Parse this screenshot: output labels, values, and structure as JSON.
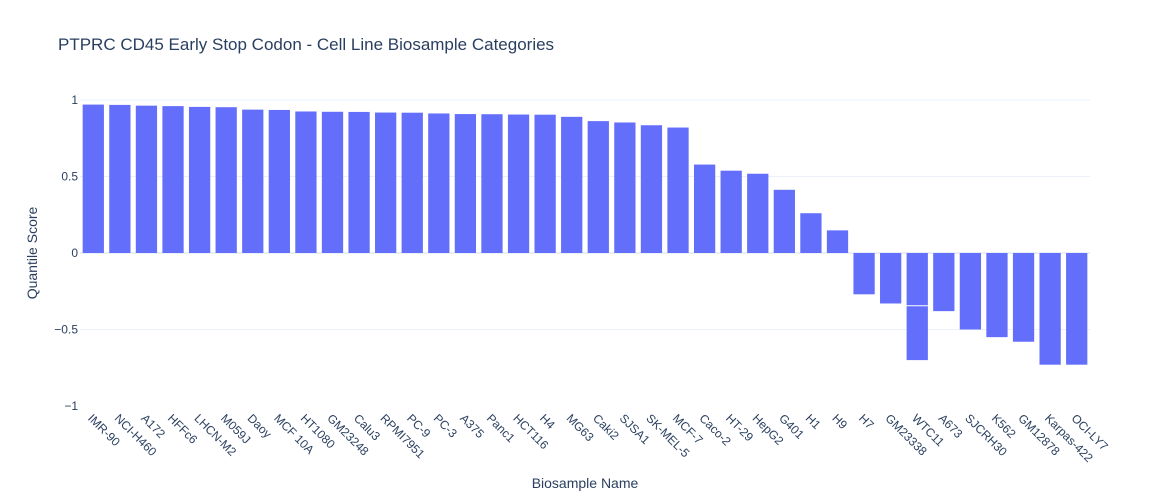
{
  "chart_data": {
    "type": "bar",
    "title": "PTPRC CD45 Early Stop Codon - Cell Line Biosample Categories",
    "xlabel": "Biosample Name",
    "ylabel": "Quantile Score",
    "ylim": [
      -1,
      1.05
    ],
    "yticks": [
      1,
      0.5,
      0,
      -0.5,
      -1
    ],
    "ytick_labels": [
      "1",
      "0.5",
      "0",
      "−0.5",
      "−1"
    ],
    "grid": true,
    "bar_color": "#636efa",
    "categories": [
      "IMR-90",
      "NCI-H460",
      "A172",
      "HFFc6",
      "LHCN-M2",
      "M059J",
      "Daoy",
      "MCF 10A",
      "HT1080",
      "GM23248",
      "Calu3",
      "RPMI7951",
      "PC-9",
      "PC-3",
      "A375",
      "Panc1",
      "HCT116",
      "H4",
      "MG63",
      "Caki2",
      "SJSA1",
      "SK-MEL-5",
      "MCF-7",
      "Caco-2",
      "HT-29",
      "HepG2",
      "G401",
      "H1",
      "H9",
      "H7",
      "GM23338",
      "WTC11",
      "A673",
      "SJCRH30",
      "K562",
      "GM12878",
      "Karpas-422",
      "OCI-LY7"
    ],
    "values": [
      0.97,
      0.968,
      0.963,
      0.96,
      0.955,
      0.953,
      0.937,
      0.935,
      0.925,
      0.923,
      0.922,
      0.918,
      0.917,
      0.912,
      0.908,
      0.907,
      0.905,
      0.904,
      0.89,
      0.862,
      0.853,
      0.835,
      0.82,
      0.578,
      0.538,
      0.518,
      0.413,
      0.26,
      0.148,
      -0.27,
      -0.33,
      -0.7,
      -0.38,
      -0.5,
      -0.55,
      -0.58,
      -0.73,
      -0.73
    ],
    "extra_segments": [
      {
        "category": "WTC11",
        "value": -0.345
      }
    ]
  }
}
